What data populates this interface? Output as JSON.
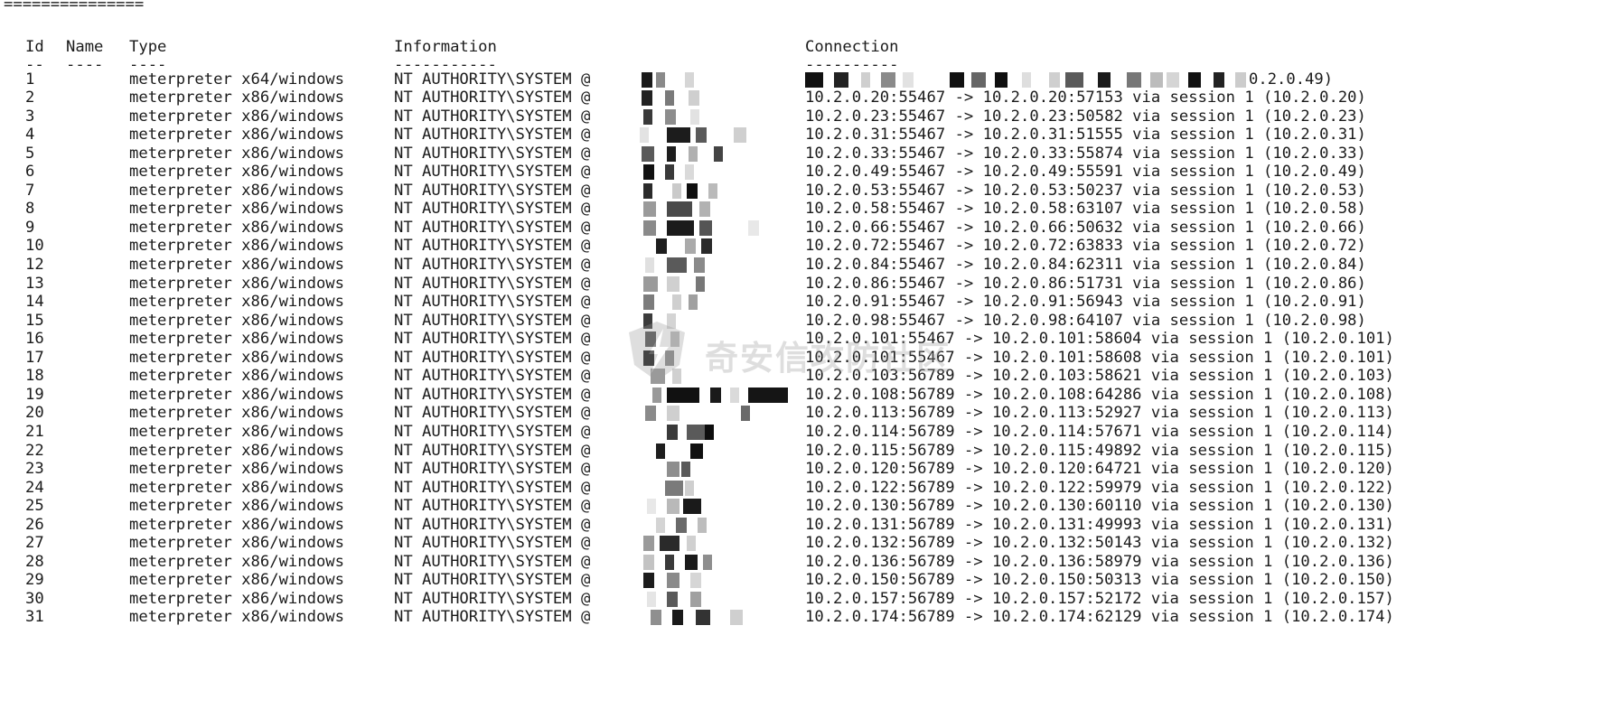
{
  "separator": "===============",
  "headers": {
    "id": "Id",
    "name": "Name",
    "type": "Type",
    "information": "Information",
    "connection": "Connection"
  },
  "header_rules": {
    "id": "--",
    "name": "----",
    "type": "----",
    "information": "-----------",
    "connection": "----------"
  },
  "first_row_connection_tail": "0.2.0.49)",
  "watermark_text": "奇安信攻防社区",
  "sessions": [
    {
      "id": "1",
      "name": "",
      "type": "meterpreter x64/windows",
      "info": "NT AUTHORITY\\SYSTEM @",
      "connection": ""
    },
    {
      "id": "2",
      "name": "",
      "type": "meterpreter x86/windows",
      "info": "NT AUTHORITY\\SYSTEM @",
      "connection": "10.2.0.20:55467 -> 10.2.0.20:57153 via session 1 (10.2.0.20)"
    },
    {
      "id": "3",
      "name": "",
      "type": "meterpreter x86/windows",
      "info": "NT AUTHORITY\\SYSTEM @",
      "connection": "10.2.0.23:55467 -> 10.2.0.23:50582 via session 1 (10.2.0.23)"
    },
    {
      "id": "4",
      "name": "",
      "type": "meterpreter x86/windows",
      "info": "NT AUTHORITY\\SYSTEM @",
      "connection": "10.2.0.31:55467 -> 10.2.0.31:51555 via session 1 (10.2.0.31)"
    },
    {
      "id": "5",
      "name": "",
      "type": "meterpreter x86/windows",
      "info": "NT AUTHORITY\\SYSTEM @",
      "connection": "10.2.0.33:55467 -> 10.2.0.33:55874 via session 1 (10.2.0.33)"
    },
    {
      "id": "6",
      "name": "",
      "type": "meterpreter x86/windows",
      "info": "NT AUTHORITY\\SYSTEM @",
      "connection": "10.2.0.49:55467 -> 10.2.0.49:55591 via session 1 (10.2.0.49)"
    },
    {
      "id": "7",
      "name": "",
      "type": "meterpreter x86/windows",
      "info": "NT AUTHORITY\\SYSTEM @",
      "connection": "10.2.0.53:55467 -> 10.2.0.53:50237 via session 1 (10.2.0.53)"
    },
    {
      "id": "8",
      "name": "",
      "type": "meterpreter x86/windows",
      "info": "NT AUTHORITY\\SYSTEM @",
      "connection": "10.2.0.58:55467 -> 10.2.0.58:63107 via session 1 (10.2.0.58)"
    },
    {
      "id": "9",
      "name": "",
      "type": "meterpreter x86/windows",
      "info": "NT AUTHORITY\\SYSTEM @",
      "connection": "10.2.0.66:55467 -> 10.2.0.66:50632 via session 1 (10.2.0.66)"
    },
    {
      "id": "10",
      "name": "",
      "type": "meterpreter x86/windows",
      "info": "NT AUTHORITY\\SYSTEM @",
      "connection": "10.2.0.72:55467 -> 10.2.0.72:63833 via session 1 (10.2.0.72)"
    },
    {
      "id": "12",
      "name": "",
      "type": "meterpreter x86/windows",
      "info": "NT AUTHORITY\\SYSTEM @",
      "connection": "10.2.0.84:55467 -> 10.2.0.84:62311 via session 1 (10.2.0.84)"
    },
    {
      "id": "13",
      "name": "",
      "type": "meterpreter x86/windows",
      "info": "NT AUTHORITY\\SYSTEM @",
      "connection": "10.2.0.86:55467 -> 10.2.0.86:51731 via session 1 (10.2.0.86)"
    },
    {
      "id": "14",
      "name": "",
      "type": "meterpreter x86/windows",
      "info": "NT AUTHORITY\\SYSTEM @",
      "connection": "10.2.0.91:55467 -> 10.2.0.91:56943 via session 1 (10.2.0.91)"
    },
    {
      "id": "15",
      "name": "",
      "type": "meterpreter x86/windows",
      "info": "NT AUTHORITY\\SYSTEM @",
      "connection": "10.2.0.98:55467 -> 10.2.0.98:64107 via session 1 (10.2.0.98)"
    },
    {
      "id": "16",
      "name": "",
      "type": "meterpreter x86/windows",
      "info": "NT AUTHORITY\\SYSTEM @",
      "connection": "10.2.0.101:55467 -> 10.2.0.101:58604 via session 1 (10.2.0.101)"
    },
    {
      "id": "17",
      "name": "",
      "type": "meterpreter x86/windows",
      "info": "NT AUTHORITY\\SYSTEM @",
      "connection": "10.2.0.101:55467 -> 10.2.0.101:58608 via session 1 (10.2.0.101)"
    },
    {
      "id": "18",
      "name": "",
      "type": "meterpreter x86/windows",
      "info": "NT AUTHORITY\\SYSTEM @",
      "connection": "10.2.0.103:56789 -> 10.2.0.103:58621 via session 1 (10.2.0.103)"
    },
    {
      "id": "19",
      "name": "",
      "type": "meterpreter x86/windows",
      "info": "NT AUTHORITY\\SYSTEM @",
      "connection": "10.2.0.108:56789 -> 10.2.0.108:64286 via session 1 (10.2.0.108)"
    },
    {
      "id": "20",
      "name": "",
      "type": "meterpreter x86/windows",
      "info": "NT AUTHORITY\\SYSTEM @",
      "connection": "10.2.0.113:56789 -> 10.2.0.113:52927 via session 1 (10.2.0.113)"
    },
    {
      "id": "21",
      "name": "",
      "type": "meterpreter x86/windows",
      "info": "NT AUTHORITY\\SYSTEM @",
      "connection": "10.2.0.114:56789 -> 10.2.0.114:57671 via session 1 (10.2.0.114)"
    },
    {
      "id": "22",
      "name": "",
      "type": "meterpreter x86/windows",
      "info": "NT AUTHORITY\\SYSTEM @",
      "connection": "10.2.0.115:56789 -> 10.2.0.115:49892 via session 1 (10.2.0.115)"
    },
    {
      "id": "23",
      "name": "",
      "type": "meterpreter x86/windows",
      "info": "NT AUTHORITY\\SYSTEM @",
      "connection": "10.2.0.120:56789 -> 10.2.0.120:64721 via session 1 (10.2.0.120)"
    },
    {
      "id": "24",
      "name": "",
      "type": "meterpreter x86/windows",
      "info": "NT AUTHORITY\\SYSTEM @",
      "connection": "10.2.0.122:56789 -> 10.2.0.122:59979 via session 1 (10.2.0.122)"
    },
    {
      "id": "25",
      "name": "",
      "type": "meterpreter x86/windows",
      "info": "NT AUTHORITY\\SYSTEM @",
      "connection": "10.2.0.130:56789 -> 10.2.0.130:60110 via session 1 (10.2.0.130)"
    },
    {
      "id": "26",
      "name": "",
      "type": "meterpreter x86/windows",
      "info": "NT AUTHORITY\\SYSTEM @",
      "connection": "10.2.0.131:56789 -> 10.2.0.131:49993 via session 1 (10.2.0.131)"
    },
    {
      "id": "27",
      "name": "",
      "type": "meterpreter x86/windows",
      "info": "NT AUTHORITY\\SYSTEM @",
      "connection": "10.2.0.132:56789 -> 10.2.0.132:50143 via session 1 (10.2.0.132)"
    },
    {
      "id": "28",
      "name": "",
      "type": "meterpreter x86/windows",
      "info": "NT AUTHORITY\\SYSTEM @",
      "connection": "10.2.0.136:56789 -> 10.2.0.136:58979 via session 1 (10.2.0.136)"
    },
    {
      "id": "29",
      "name": "",
      "type": "meterpreter x86/windows",
      "info": "NT AUTHORITY\\SYSTEM @",
      "connection": "10.2.0.150:56789 -> 10.2.0.150:50313 via session 1 (10.2.0.150)"
    },
    {
      "id": "30",
      "name": "",
      "type": "meterpreter x86/windows",
      "info": "NT AUTHORITY\\SYSTEM @",
      "connection": "10.2.0.157:56789 -> 10.2.0.157:52172 via session 1 (10.2.0.157)"
    },
    {
      "id": "31",
      "name": "",
      "type": "meterpreter x86/windows",
      "info": "NT AUTHORITY\\SYSTEM @",
      "connection": "10.2.0.174:56789 -> 10.2.0.174:62129 via session 1 (10.2.0.174)"
    }
  ]
}
